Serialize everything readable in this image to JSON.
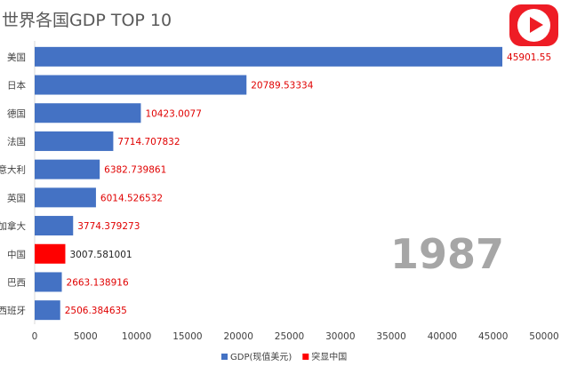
{
  "title": "世界各国GDP TOP 10",
  "play_button_icon": "play-icon",
  "chart_data": {
    "type": "bar",
    "orientation": "horizontal",
    "year": "1987",
    "categories": [
      "美国",
      "日本",
      "德国",
      "法国",
      "意大利",
      "英国",
      "加拿大",
      "中国",
      "巴西",
      "西班牙"
    ],
    "values": [
      45901.55,
      20789.53334,
      10423.0077,
      7714.707832,
      6382.739861,
      6014.526532,
      3774.379273,
      3007.581001,
      2663.138916,
      2506.384635
    ],
    "value_labels": [
      "45901.55",
      "20789.53334",
      "10423.0077",
      "7714.707832",
      "6382.739861",
      "6014.526532",
      "3774.379273",
      "3007.581001",
      "2663.138916",
      "2506.384635"
    ],
    "highlight": [
      "",
      "",
      "",
      "",
      "",
      "",
      "",
      "突显中国",
      "",
      ""
    ],
    "xlim": [
      0,
      50000
    ],
    "xticks": [
      0,
      5000,
      10000,
      15000,
      20000,
      25000,
      30000,
      35000,
      40000,
      45000,
      50000
    ],
    "grid": false,
    "legend_position": "bottom",
    "legend": [
      {
        "label": "GDP(现值美元)",
        "color": "#4472c4"
      },
      {
        "label": "突显中国",
        "color": "#ff0000"
      }
    ],
    "colors": {
      "bar": "#4472c4",
      "highlight": "#ff0000",
      "value_label": "#e00000",
      "year": "#a6a6a6"
    }
  }
}
